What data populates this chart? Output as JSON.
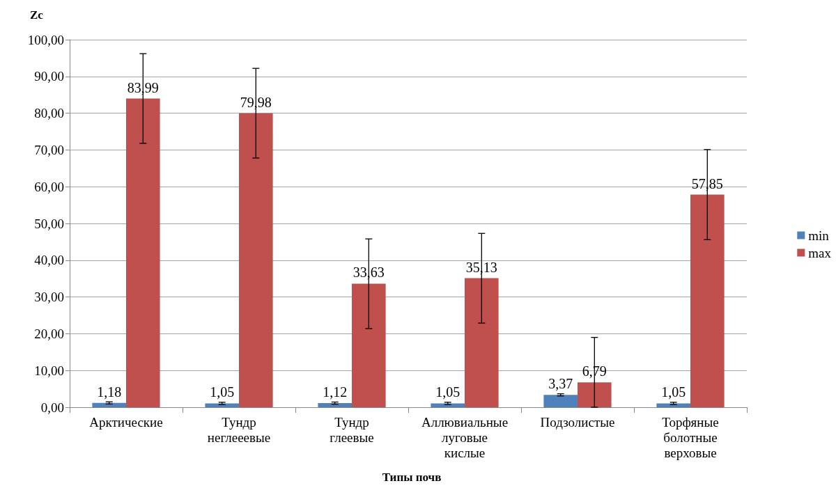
{
  "chart_data": {
    "type": "bar",
    "ylabel": "Zc",
    "xlabel": "Типы почв",
    "categories": [
      "Арктические",
      "Тундр неглееевые",
      "Тундр глеевые",
      "Аллювиальные луговые кислые",
      "Подзолистые",
      "Торфяные болотные верховые"
    ],
    "series": [
      {
        "name": "min",
        "color": "#4f81bd",
        "values": [
          1.18,
          1.05,
          1.12,
          1.05,
          3.37,
          1.05
        ],
        "value_labels": [
          "1,18",
          "1,05",
          "1,12",
          "1,05",
          "3,37",
          "1,05"
        ],
        "errors": [
          0.3,
          0.3,
          0.3,
          0.3,
          0.3,
          0.3
        ]
      },
      {
        "name": "max",
        "color": "#c0504d",
        "values": [
          83.99,
          79.98,
          33.63,
          35.13,
          6.79,
          57.85
        ],
        "value_labels": [
          "83,99",
          "79,98",
          "33,63",
          "35,13",
          "6,79",
          "57,85"
        ],
        "errors": [
          [
            71.8,
            96.2
          ],
          [
            67.8,
            92.2
          ],
          [
            21.4,
            45.8
          ],
          [
            22.9,
            47.3
          ],
          [
            0,
            19.0
          ],
          [
            45.6,
            70.1
          ]
        ]
      }
    ],
    "ylim": [
      0,
      100
    ],
    "yticks": [
      {
        "value": 0,
        "label": "0,00"
      },
      {
        "value": 10,
        "label": "10,00"
      },
      {
        "value": 20,
        "label": "20,00"
      },
      {
        "value": 30,
        "label": "30,00"
      },
      {
        "value": 40,
        "label": "40,00"
      },
      {
        "value": 50,
        "label": "50,00"
      },
      {
        "value": 60,
        "label": "60,00"
      },
      {
        "value": 70,
        "label": "70,00"
      },
      {
        "value": 80,
        "label": "80,00"
      },
      {
        "value": 90,
        "label": "90,00"
      },
      {
        "value": 100,
        "label": "100,00"
      }
    ],
    "grid": "y",
    "legend": "right"
  }
}
